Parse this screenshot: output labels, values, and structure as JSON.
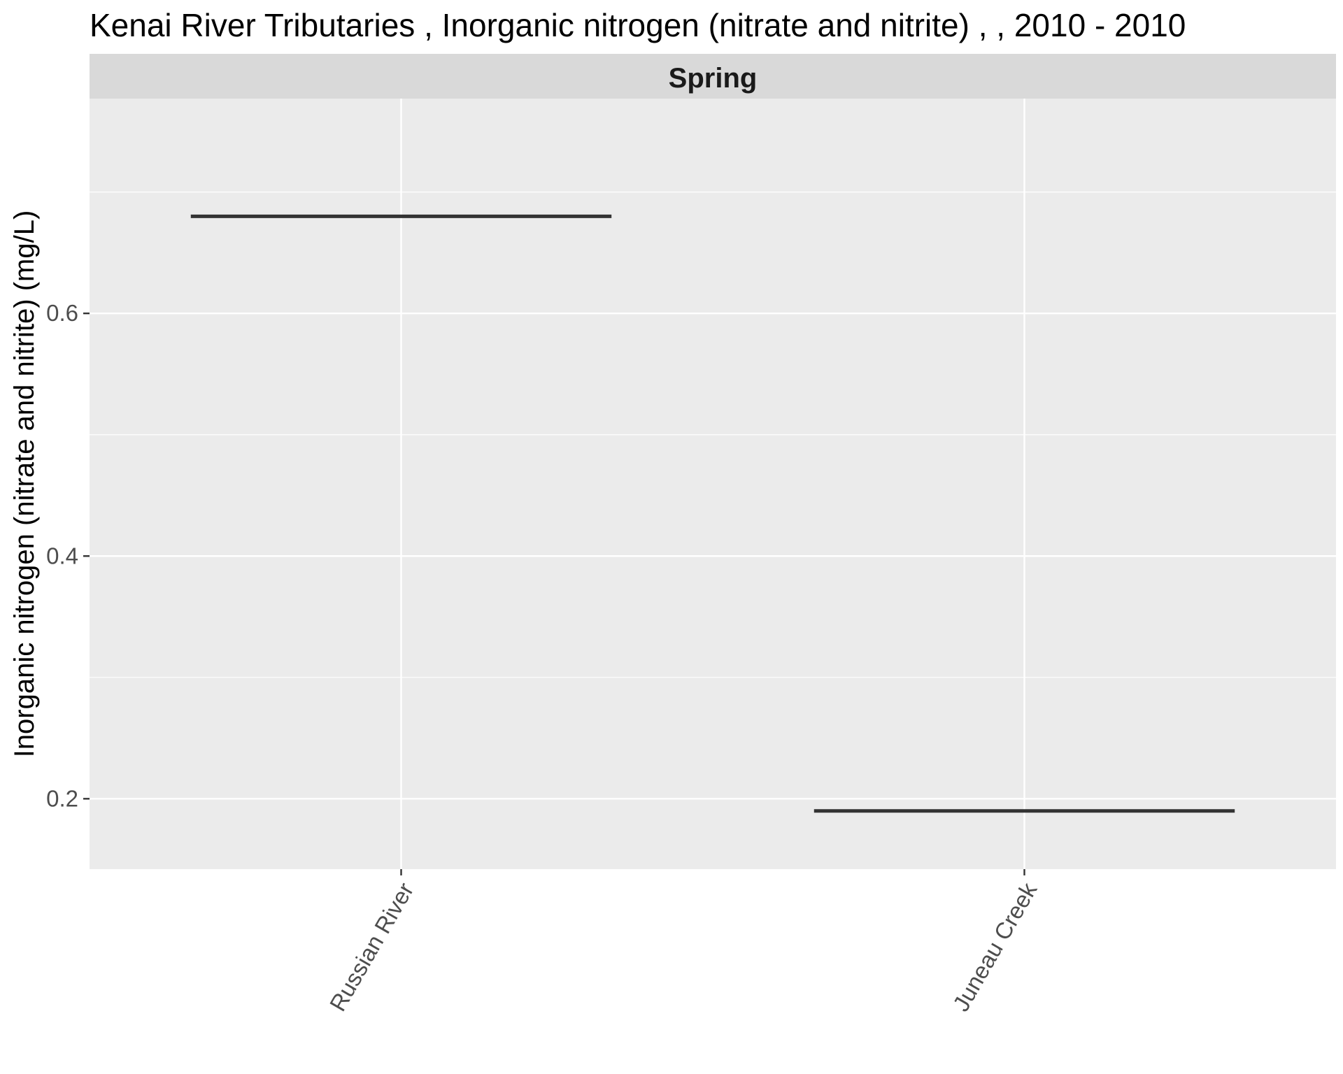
{
  "chart_data": {
    "type": "bar",
    "title": "Kenai River Tributaries , Inorganic nitrogen (nitrate and nitrite) ,  , 2010 - 2010",
    "facet": "Spring",
    "xlabel": "",
    "ylabel": "Inorganic nitrogen (nitrate and nitrite) (mg/L)",
    "categories": [
      "Russian River",
      "Juneau Creek"
    ],
    "values": [
      0.68,
      0.19
    ],
    "ylim": [
      0.142,
      0.777
    ],
    "yticks": [
      0.2,
      0.4,
      0.6
    ],
    "ytick_labels": [
      "0.2",
      "0.4",
      "0.6"
    ],
    "grid": true,
    "legend": "none",
    "colors": {
      "panel": "#ebebeb",
      "strip": "#d9d9d9",
      "grid": "#ffffff",
      "mark": "#333333"
    }
  }
}
